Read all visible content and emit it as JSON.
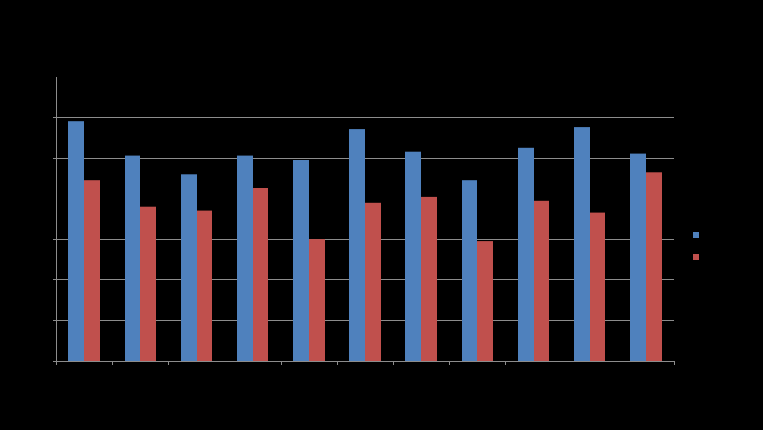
{
  "colors": {
    "background": "#000000",
    "grid": "#8c8c8c",
    "axis": "#8c8c8c",
    "series_a": "#4f81bd",
    "series_b": "#c0504d"
  },
  "chart_data": {
    "type": "bar",
    "title": "",
    "xlabel": "",
    "ylabel": "",
    "ylim": [
      0,
      7
    ],
    "y_tick_step": 1,
    "grid": true,
    "legend_position": "right",
    "categories": [
      "",
      "",
      "",
      "",
      "",
      "",
      "",
      "",
      "",
      "",
      ""
    ],
    "series": [
      {
        "color_key": "series_a",
        "values": [
          5.9,
          5.05,
          4.6,
          5.05,
          4.95,
          5.7,
          5.15,
          4.45,
          5.25,
          5.75,
          5.1
        ]
      },
      {
        "color_key": "series_b",
        "values": [
          4.45,
          3.8,
          3.7,
          4.25,
          3.0,
          3.9,
          4.05,
          2.95,
          3.95,
          3.65,
          4.65
        ]
      }
    ]
  }
}
